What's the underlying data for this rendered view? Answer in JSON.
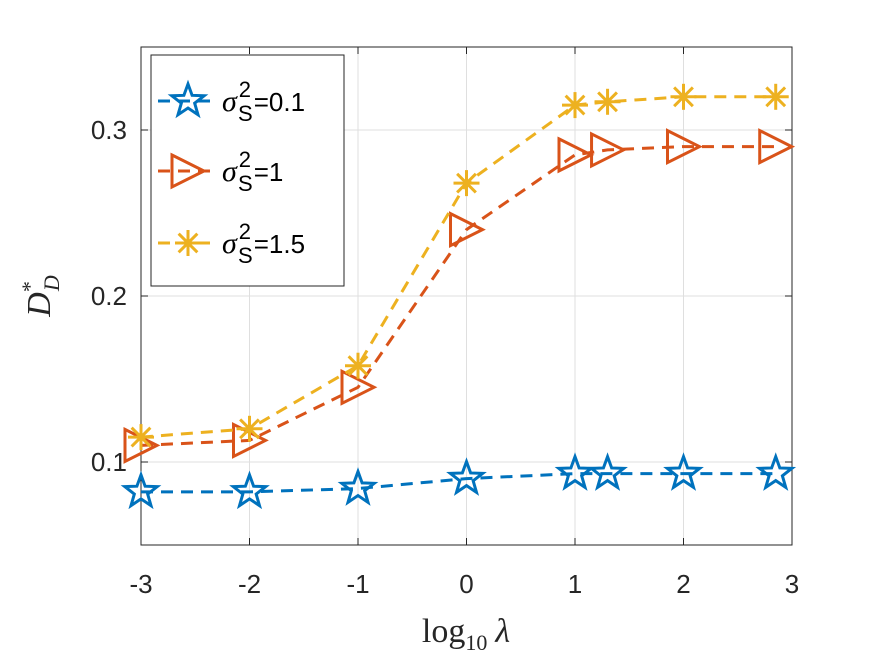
{
  "chart_data": {
    "type": "line",
    "x": [
      -3,
      -2,
      -1,
      0,
      1,
      1.3,
      2,
      2.85
    ],
    "series": [
      {
        "name": "σ_S^2=0.1",
        "legend": {
          "sym": "σ",
          "sub": "S",
          "sup": "2",
          "value": "=0.1"
        },
        "values": [
          0.082,
          0.082,
          0.084,
          0.09,
          0.093,
          0.093,
          0.093,
          0.093
        ],
        "color": "#0072BD",
        "marker": "pentagram"
      },
      {
        "name": "σ_S^2=1",
        "legend": {
          "sym": "σ",
          "sub": "S",
          "sup": "2",
          "value": "=1"
        },
        "values": [
          0.11,
          0.113,
          0.145,
          0.24,
          0.285,
          0.288,
          0.29,
          0.29
        ],
        "color": "#D95319",
        "marker": "triangle-right"
      },
      {
        "name": "σ_S^2=1.5",
        "legend": {
          "sym": "σ",
          "sub": "S",
          "sup": "2",
          "value": "=1.5"
        },
        "values": [
          0.115,
          0.12,
          0.158,
          0.268,
          0.315,
          0.317,
          0.32,
          0.32
        ],
        "color": "#EDB120",
        "marker": "asterisk"
      }
    ],
    "xlim": [
      -3,
      3
    ],
    "ylim": [
      0.05,
      0.35
    ],
    "xticks": [
      -3,
      -2,
      -1,
      0,
      1,
      2,
      3
    ],
    "xtick_labels": [
      "-3",
      "-2",
      "-1",
      "0",
      "1",
      "2",
      "3"
    ],
    "yticks": [
      0.1,
      0.2,
      0.3
    ],
    "ytick_labels": [
      "0.1",
      "0.2",
      "0.3"
    ],
    "xlabel": {
      "base": "log",
      "sub": "10",
      "var": "λ"
    },
    "ylabel": {
      "base": "D",
      "sup": "*",
      "sub": "D"
    },
    "grid": true,
    "legend_position": "top-left",
    "title": ""
  }
}
